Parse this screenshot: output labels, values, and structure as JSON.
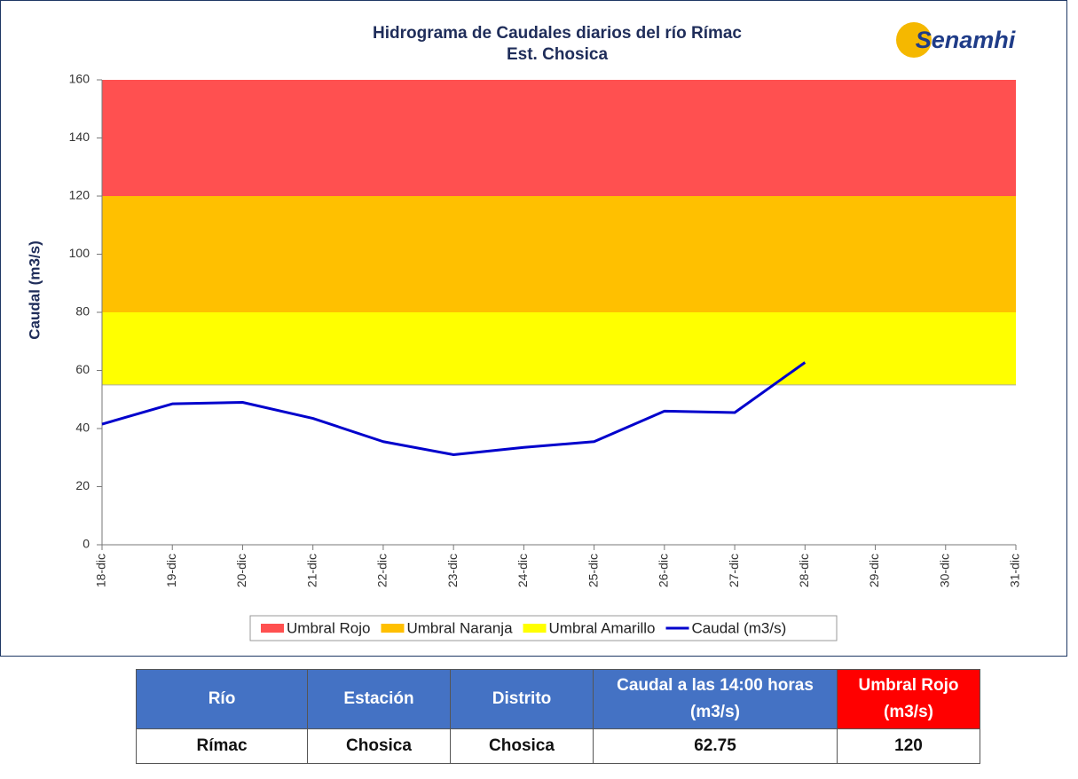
{
  "chart_data": {
    "type": "line",
    "title": "Hidrograma  de Caudales diarios del río Rímac",
    "subtitle": "Est. Chosica",
    "logo": "Senamhi",
    "y_label": "Caudal (m3/s)",
    "categories": [
      "18-dic",
      "19-dic",
      "20-dic",
      "21-dic",
      "22-dic",
      "23-dic",
      "24-dic",
      "25-dic",
      "26-dic",
      "27-dic",
      "28-dic",
      "29-dic",
      "30-dic",
      "31-dic"
    ],
    "bands": [
      {
        "name": "Umbral Rojo",
        "color": "#ff5050",
        "range": [
          120,
          160
        ]
      },
      {
        "name": "Umbral Naranja",
        "color": "#ffc000",
        "range": [
          80,
          120
        ]
      },
      {
        "name": "Umbral Amarillo",
        "color": "#ffff00",
        "range": [
          55,
          80
        ]
      }
    ],
    "series": [
      {
        "name": "Caudal (m3/s)",
        "color": "#0000cc",
        "values": [
          41.5,
          48.5,
          49,
          43.5,
          35.5,
          31,
          33.5,
          35.5,
          46,
          45.5,
          62.75,
          null,
          null,
          null
        ]
      }
    ],
    "ylim": [
      0,
      160
    ],
    "yticks": [
      0,
      20,
      40,
      60,
      80,
      100,
      120,
      140,
      160
    ],
    "legend": "bottom"
  },
  "table": {
    "header": [
      "Río",
      "Estación",
      "Distrito",
      [
        "Caudal a  las 14:00 horas",
        "(m3/s)"
      ],
      [
        "Umbral  Rojo",
        "(m3/s)"
      ]
    ],
    "rows": [
      [
        "Rímac",
        "Chosica",
        "Chosica",
        "62.75",
        "120"
      ]
    ]
  }
}
